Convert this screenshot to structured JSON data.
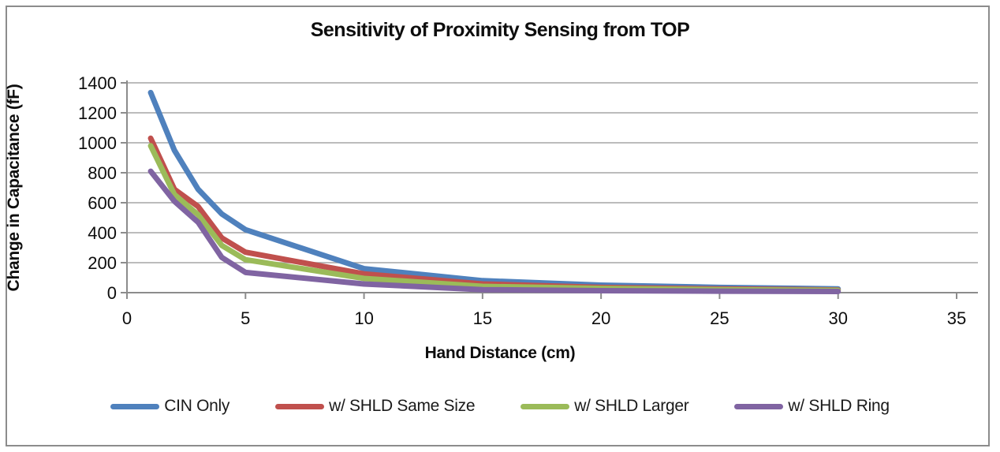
{
  "window": {
    "background": "#ffffff",
    "frame_border_color": "#8c8c8c"
  },
  "chart_data": {
    "type": "line",
    "title": "Sensitivity of Proximity Sensing from TOP",
    "xlabel": "Hand Distance (cm)",
    "ylabel": "Change in Capacitance (fF)",
    "xlim": [
      0,
      35
    ],
    "ylim": [
      0,
      1400
    ],
    "x_ticks": [
      0,
      5,
      10,
      15,
      20,
      25,
      30,
      35
    ],
    "y_ticks": [
      0,
      200,
      400,
      600,
      800,
      1000,
      1200,
      1400
    ],
    "grid": "horizontal",
    "gridline_color": "#a6a6a6",
    "axis_color": "#8c8c8c",
    "legend_position": "bottom",
    "x": [
      1,
      2,
      3,
      4,
      5,
      10,
      15,
      20,
      25,
      30
    ],
    "series": [
      {
        "name": "CIN Only",
        "color": "#4F81BD",
        "values": [
          1335,
          950,
          690,
          525,
          420,
          160,
          80,
          50,
          35,
          25
        ]
      },
      {
        "name": "w/ SHLD Same Size",
        "color": "#C0504D",
        "values": [
          1030,
          690,
          575,
          365,
          270,
          125,
          58,
          35,
          25,
          18
        ]
      },
      {
        "name": "w/ SHLD Larger",
        "color": "#9BBB59",
        "values": [
          980,
          655,
          520,
          315,
          220,
          95,
          42,
          28,
          20,
          15
        ]
      },
      {
        "name": "w/ SHLD Ring",
        "color": "#8064A2",
        "values": [
          810,
          610,
          470,
          235,
          135,
          58,
          20,
          13,
          10,
          8
        ]
      }
    ]
  }
}
